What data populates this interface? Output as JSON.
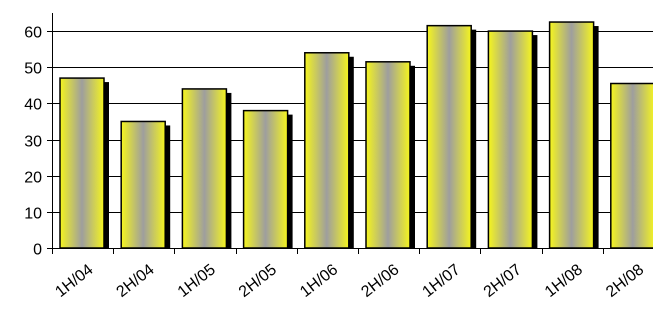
{
  "chart_data": {
    "type": "bar",
    "categories": [
      "1H/04",
      "2H/04",
      "1H/05",
      "2H/05",
      "1H/06",
      "2H/06",
      "1H/07",
      "2H/07",
      "1H/08",
      "2H/08"
    ],
    "values": [
      47,
      35,
      44,
      38,
      54,
      51.5,
      61.5,
      60,
      62.5,
      45.5
    ],
    "ylim": [
      0,
      65
    ],
    "yticks": [
      0,
      10,
      20,
      30,
      40,
      50,
      60
    ],
    "grid": true,
    "legend": "none",
    "title": "",
    "xlabel": "",
    "ylabel": "",
    "colors": {
      "bar_edge": "#f5f51e",
      "bar_center": "#9e9e9e",
      "bar_shadow": "#000000",
      "grid": "#000000"
    }
  }
}
